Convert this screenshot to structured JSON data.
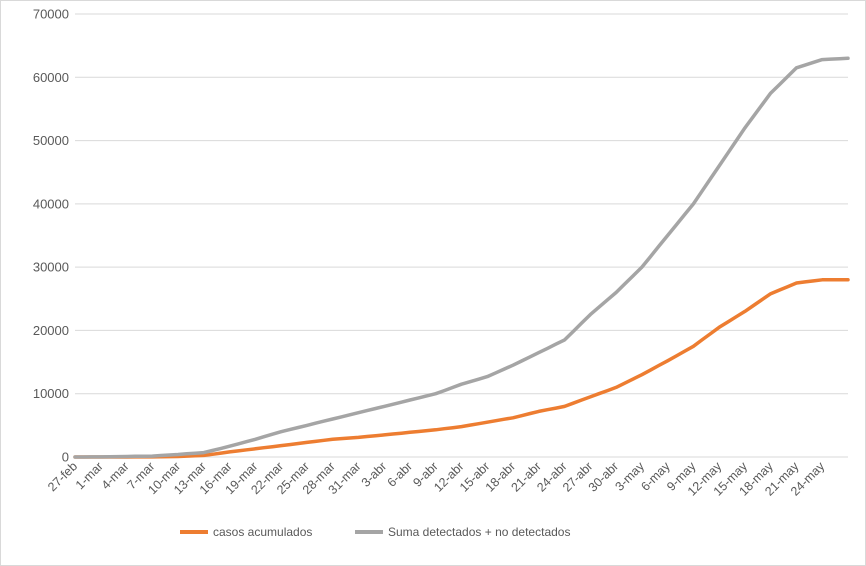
{
  "chart_data": {
    "type": "line",
    "title": "",
    "xlabel": "",
    "ylabel": "",
    "ylim": [
      0,
      70000
    ],
    "yticks": [
      "0",
      "10000",
      "20000",
      "30000",
      "40000",
      "50000",
      "60000",
      "70000"
    ],
    "grid": "horizontal",
    "legend_position": "bottom",
    "x_ticks": [
      "27-feb",
      "1-mar",
      "4-mar",
      "7-mar",
      "10-mar",
      "13-mar",
      "16-mar",
      "19-mar",
      "22-mar",
      "25-mar",
      "28-mar",
      "31-mar",
      "3-abr",
      "6-abr",
      "9-abr",
      "12-abr",
      "15-abr",
      "18-abr",
      "21-abr",
      "24-abr",
      "27-abr",
      "30-abr",
      "3-may",
      "6-may",
      "9-may",
      "12-may",
      "15-may",
      "18-may",
      "21-may",
      "24-may"
    ],
    "x_tick_day_step": 3,
    "num_points": 91,
    "series": [
      {
        "name": "casos acumulados",
        "color": "#ED7D31",
        "tick_values": [
          0,
          1,
          5,
          20,
          80,
          250,
          800,
          1300,
          1800,
          2300,
          2800,
          3100,
          3500,
          3900,
          4300,
          4800,
          5500,
          6200,
          7200,
          8000,
          9500,
          11000,
          13000,
          15200,
          17500,
          20500,
          23000,
          25800,
          27500,
          28000
        ],
        "last_value": 28000
      },
      {
        "name": "Suma detectados + no detectados",
        "color": "#A5A5A5",
        "tick_values": [
          0,
          20,
          80,
          150,
          400,
          700,
          1700,
          2800,
          4000,
          5000,
          6000,
          7000,
          8000,
          9000,
          10000,
          11500,
          12700,
          14500,
          16500,
          18500,
          22500,
          26000,
          30000,
          35000,
          40000,
          46000,
          52000,
          57500,
          61500,
          62800
        ],
        "last_value": 63000
      }
    ]
  }
}
